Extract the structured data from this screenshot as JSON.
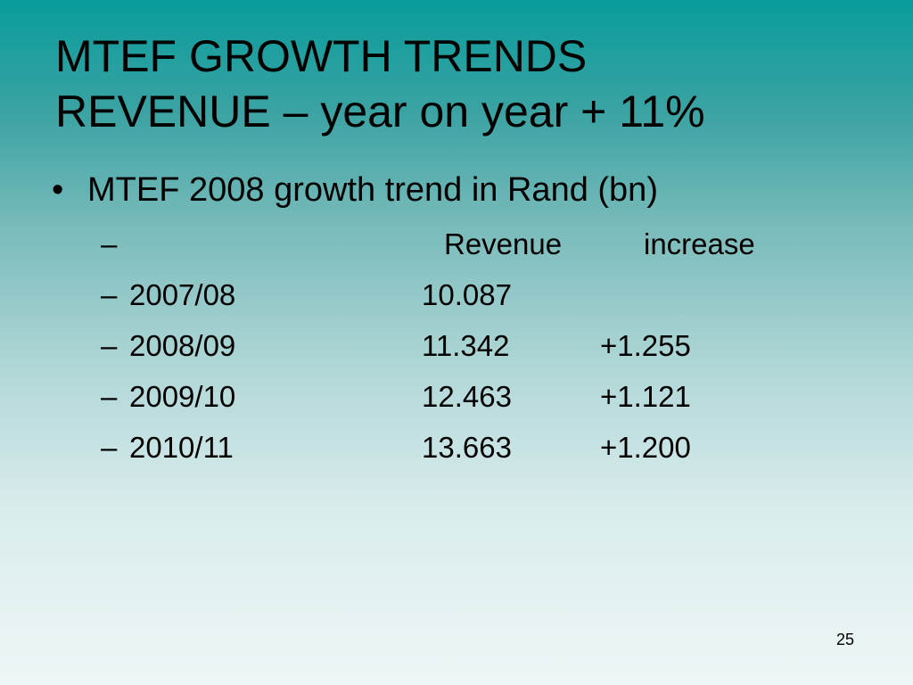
{
  "title": {
    "line1": "MTEF GROWTH TRENDS",
    "line2": "REVENUE – year on year + 11%"
  },
  "bullet": {
    "symbol": "•",
    "text": "MTEF 2008 growth trend in Rand (bn)"
  },
  "table": {
    "dash": "–",
    "header": {
      "revenue": "Revenue",
      "increase": "increase"
    },
    "rows": [
      {
        "year": "2007/08",
        "revenue": "10.087",
        "increase": ""
      },
      {
        "year": "2008/09",
        "revenue": "11.342",
        "increase": "+1.255"
      },
      {
        "year": "2009/10",
        "revenue": "12.463",
        "increase": "+1.121"
      },
      {
        "year": "2010/11",
        "revenue": "13.663",
        "increase": "+1.200"
      }
    ]
  },
  "page_number": "25"
}
